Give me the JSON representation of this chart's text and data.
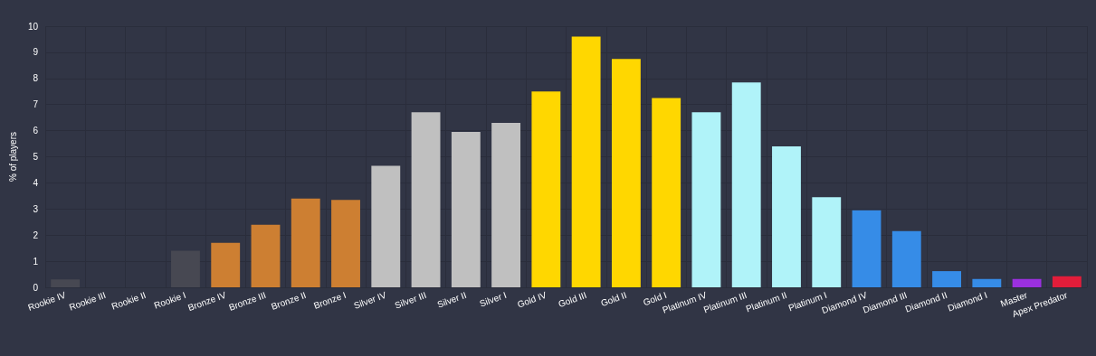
{
  "chart_data": {
    "type": "bar",
    "ylabel": "% of players",
    "categories": [
      "Rookie IV",
      "Rookie III",
      "Rookie II",
      "Rookie I",
      "Bronze IV",
      "Bronze III",
      "Bronze II",
      "Bronze I",
      "Silver IV",
      "Silver III",
      "Silver II",
      "Silver I",
      "Gold IV",
      "Gold III",
      "Gold II",
      "Gold I",
      "Platinum IV",
      "Platinum III",
      "Platinum II",
      "Platinum I",
      "Diamond IV",
      "Diamond III",
      "Diamond II",
      "Diamond I",
      "Master",
      "Apex Predator"
    ],
    "values": [
      0.3,
      0,
      0,
      1.4,
      1.7,
      2.4,
      3.4,
      3.35,
      4.65,
      6.7,
      5.95,
      6.3,
      7.5,
      9.6,
      8.75,
      7.25,
      6.7,
      7.85,
      5.4,
      3.45,
      2.95,
      2.15,
      0.62,
      0.32,
      0.32,
      0.42
    ],
    "colors": [
      "#474852",
      "#474852",
      "#474852",
      "#474852",
      "#cd7f32",
      "#cd7f32",
      "#cd7f32",
      "#cd7f32",
      "#c0c0c0",
      "#c0c0c0",
      "#c0c0c0",
      "#c0c0c0",
      "#ffd700",
      "#ffd700",
      "#ffd700",
      "#ffd700",
      "#b0f3f9",
      "#b0f3f9",
      "#b0f3f9",
      "#b0f3f9",
      "#368ce7",
      "#368ce7",
      "#368ce7",
      "#368ce7",
      "#9b30e0",
      "#e21d3a"
    ],
    "ylim": [
      0,
      10
    ],
    "yticks": [
      0,
      1,
      2,
      3,
      4,
      5,
      6,
      7,
      8,
      9,
      10
    ],
    "grid": true
  }
}
